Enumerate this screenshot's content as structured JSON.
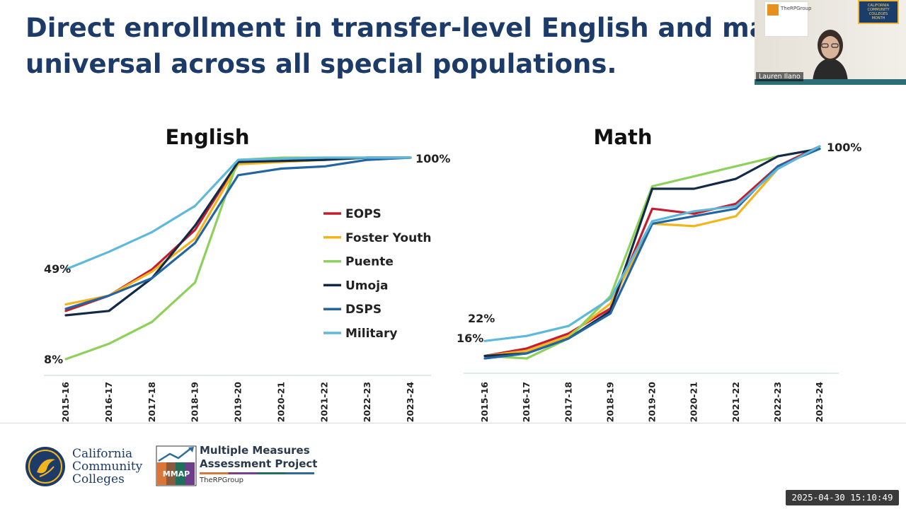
{
  "slide": {
    "title_line1": "Direct enrollment in transfer-level English and math is now",
    "title_line2": "universal across all special populations."
  },
  "legend": [
    {
      "name": "EOPS",
      "color": "#c41e2e"
    },
    {
      "name": "Foster Youth",
      "color": "#f2b51d"
    },
    {
      "name": "Puente",
      "color": "#8dd15a"
    },
    {
      "name": "Umoja",
      "color": "#122a48"
    },
    {
      "name": "DSPS",
      "color": "#2265a2"
    },
    {
      "name": "Military",
      "color": "#5db8dc"
    }
  ],
  "chart_data": [
    {
      "type": "line",
      "title": "English",
      "categories": [
        "2015-16",
        "2016-17",
        "2017-18",
        "2018-19",
        "2019-20",
        "2020-21",
        "2021-22",
        "2022-23",
        "2023-24"
      ],
      "ylim": [
        0,
        100
      ],
      "grid": false,
      "start_annotations": [
        "49%",
        "8%"
      ],
      "end_annotation": "100%",
      "series": [
        {
          "name": "EOPS",
          "color": "#c41e2e",
          "values": [
            30,
            37,
            49,
            67,
            98,
            99,
            99.5,
            100,
            100
          ]
        },
        {
          "name": "Foster Youth",
          "color": "#f2b51d",
          "values": [
            33,
            37,
            48,
            63,
            97,
            98,
            99,
            100,
            100
          ]
        },
        {
          "name": "Puente",
          "color": "#8dd15a",
          "values": [
            8,
            15,
            25,
            43,
            99,
            100,
            100,
            100,
            100
          ]
        },
        {
          "name": "Umoja",
          "color": "#122a48",
          "values": [
            28,
            30,
            45,
            69,
            98,
            98.5,
            99,
            100,
            100
          ]
        },
        {
          "name": "DSPS",
          "color": "#2265a2",
          "values": [
            31,
            37,
            45,
            61,
            92,
            95,
            96,
            99,
            100
          ]
        },
        {
          "name": "Military",
          "color": "#5db8dc",
          "values": [
            49,
            57,
            66,
            78,
            99,
            99.5,
            100,
            100,
            100
          ]
        }
      ]
    },
    {
      "type": "line",
      "title": "Math",
      "categories": [
        "2015-16",
        "2016-17",
        "2017-18",
        "2018-19",
        "2019-20",
        "2020-21",
        "2021-22",
        "2022-23",
        "2023-24"
      ],
      "ylim": [
        0,
        100
      ],
      "grid": false,
      "start_annotations": [
        "22%",
        "16%"
      ],
      "end_annotation": "100%",
      "series": [
        {
          "name": "EOPS",
          "color": "#c41e2e",
          "values": [
            16,
            19,
            25,
            35,
            75,
            73,
            77,
            92,
            100
          ]
        },
        {
          "name": "Foster Youth",
          "color": "#f2b51d",
          "values": [
            16,
            18,
            24,
            37,
            69,
            68,
            72,
            91,
            100
          ]
        },
        {
          "name": "Puente",
          "color": "#8dd15a",
          "values": [
            16,
            15,
            23,
            40,
            84,
            88,
            92,
            96,
            99
          ]
        },
        {
          "name": "Umoja",
          "color": "#122a48",
          "values": [
            16,
            17,
            23,
            34,
            83,
            83,
            87,
            96,
            99
          ]
        },
        {
          "name": "DSPS",
          "color": "#2265a2",
          "values": [
            15,
            17,
            23,
            33,
            69,
            72,
            75,
            92,
            99
          ]
        },
        {
          "name": "Military",
          "color": "#5db8dc",
          "values": [
            22,
            24,
            28,
            39,
            70,
            74,
            76,
            91,
            100
          ]
        }
      ]
    }
  ],
  "footer": {
    "ccc_name_line1": "California",
    "ccc_name_line2": "Community",
    "ccc_name_line3": "Colleges",
    "mmap_line1": "Multiple Measures",
    "mmap_line2": "Assessment Project",
    "mmap_acronym": "MMAP",
    "rpgroup": "TheRPGroup"
  },
  "video": {
    "participant_name": "Lauren Ilano",
    "sign_text": "TheRPGroup",
    "banner_line1": "CALIFORNIA",
    "banner_line2": "COMMUNITY COLLEGES",
    "banner_line3": "MONTH"
  },
  "timestamp": "2025-04-30 15:10:49"
}
